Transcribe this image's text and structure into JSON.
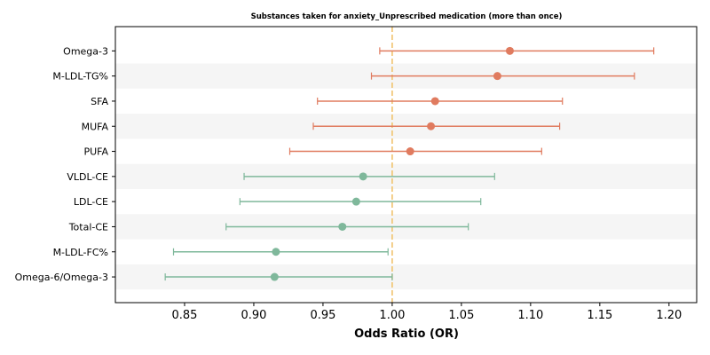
{
  "chart_data": {
    "type": "forest",
    "title": "Substances taken for anxiety_Unprescribed medication (more than once)",
    "xlabel": "Odds Ratio (OR)",
    "ylabel": "",
    "xlim": [
      0.8,
      1.22
    ],
    "xticks": [
      "0.85",
      "0.90",
      "0.95",
      "1.00",
      "1.05",
      "1.10",
      "1.15",
      "1.20"
    ],
    "reference_line": 1.0,
    "reference_color": "#f0c36d",
    "colors": {
      "above": "#e07b5f",
      "below": "#7fb89b"
    },
    "grid": false,
    "rows": [
      {
        "label": "Omega-3",
        "or": 1.085,
        "lo": 0.991,
        "hi": 1.189
      },
      {
        "label": "M-LDL-TG%",
        "or": 1.076,
        "lo": 0.985,
        "hi": 1.175
      },
      {
        "label": "SFA",
        "or": 1.031,
        "lo": 0.946,
        "hi": 1.123
      },
      {
        "label": "MUFA",
        "or": 1.028,
        "lo": 0.943,
        "hi": 1.121
      },
      {
        "label": "PUFA",
        "or": 1.013,
        "lo": 0.926,
        "hi": 1.108
      },
      {
        "label": "VLDL-CE",
        "or": 0.979,
        "lo": 0.893,
        "hi": 1.074
      },
      {
        "label": "LDL-CE",
        "or": 0.974,
        "lo": 0.89,
        "hi": 1.064
      },
      {
        "label": "Total-CE",
        "or": 0.964,
        "lo": 0.88,
        "hi": 1.055
      },
      {
        "label": "M-LDL-FC%",
        "or": 0.916,
        "lo": 0.842,
        "hi": 0.997
      },
      {
        "label": "Omega-6/Omega-3",
        "or": 0.915,
        "lo": 0.836,
        "hi": 1.0
      }
    ]
  }
}
